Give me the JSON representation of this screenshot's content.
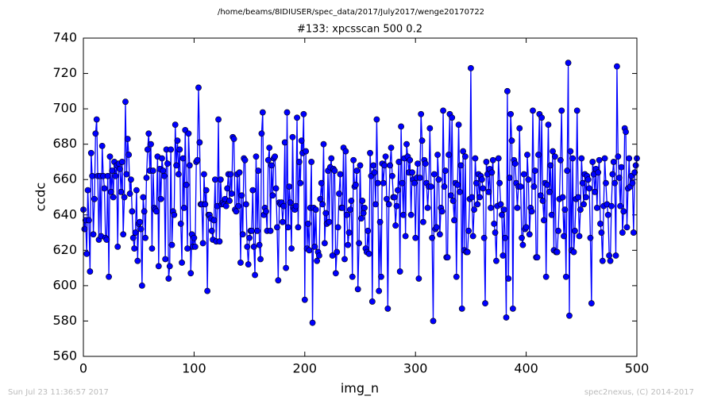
{
  "chart_data": {
    "type": "line",
    "suptitle": "/home/beams/8IDIUSER/spec_data/2017/July2017/wenge20170722",
    "title": "#133: xpcsscan 500 0.2",
    "xlabel": "img_n",
    "ylabel": "ccdc",
    "footer_left": "Sun Jul 23 11:36:57 2017",
    "footer_right": "spec2nexus, (C) 2014-2017",
    "xlim": [
      0,
      500
    ],
    "xticks": [
      0,
      100,
      200,
      300,
      400,
      500
    ],
    "ylim": [
      560,
      740
    ],
    "yticks": [
      560,
      580,
      600,
      620,
      640,
      660,
      680,
      700,
      720,
      740
    ],
    "grid": false,
    "marker": "circle",
    "x": [
      0,
      1,
      2,
      3,
      4,
      5,
      6,
      7,
      8,
      9,
      10,
      11,
      12,
      13,
      14,
      15,
      16,
      17,
      18,
      19,
      20,
      21,
      22,
      23,
      24,
      25,
      26,
      27,
      28,
      29,
      30,
      31,
      32,
      33,
      34,
      35,
      36,
      37,
      38,
      39,
      40,
      41,
      42,
      43,
      44,
      45,
      46,
      47,
      48,
      49,
      50,
      51,
      52,
      53,
      54,
      55,
      56,
      57,
      58,
      59,
      60,
      61,
      62,
      63,
      64,
      65,
      66,
      67,
      68,
      69,
      70,
      71,
      72,
      73,
      74,
      75,
      76,
      77,
      78,
      79,
      80,
      81,
      82,
      83,
      84,
      85,
      86,
      87,
      88,
      89,
      90,
      91,
      92,
      93,
      94,
      95,
      96,
      97,
      98,
      99,
      100,
      101,
      102,
      103,
      104,
      105,
      106,
      107,
      108,
      109,
      110,
      111,
      112,
      113,
      114,
      115,
      116,
      117,
      118,
      119,
      120,
      121,
      122,
      123,
      124,
      125,
      126,
      127,
      128,
      129,
      130,
      131,
      132,
      133,
      134,
      135,
      136,
      137,
      138,
      139,
      140,
      141,
      142,
      143,
      144,
      145,
      146,
      147,
      148,
      149,
      150,
      151,
      152,
      153,
      154,
      155,
      156,
      157,
      158,
      159,
      160,
      161,
      162,
      163,
      164,
      165,
      166,
      167,
      168,
      169,
      170,
      171,
      172,
      173,
      174,
      175,
      176,
      177,
      178,
      179,
      180,
      181,
      182,
      183,
      184,
      185,
      186,
      187,
      188,
      189,
      190,
      191,
      192,
      193,
      194,
      195,
      196,
      197,
      198,
      199,
      200,
      201,
      202,
      203,
      204,
      205,
      206,
      207,
      208,
      209,
      210,
      211,
      212,
      213,
      214,
      215,
      216,
      217,
      218,
      219,
      220,
      221,
      222,
      223,
      224,
      225,
      226,
      227,
      228,
      229,
      230,
      231,
      232,
      233,
      234,
      235,
      236,
      237,
      238,
      239,
      240,
      241,
      242,
      243,
      244,
      245,
      246,
      247,
      248,
      249,
      250,
      251,
      252,
      253,
      254,
      255,
      256,
      257,
      258,
      259,
      260,
      261,
      262,
      263,
      264,
      265,
      266,
      267,
      268,
      269,
      270,
      271,
      272,
      273,
      274,
      275,
      276,
      277,
      278,
      279,
      280,
      281,
      282,
      283,
      284,
      285,
      286,
      287,
      288,
      289,
      290,
      291,
      292,
      293,
      294,
      295,
      296,
      297,
      298,
      299,
      300,
      301,
      302,
      303,
      304,
      305,
      306,
      307,
      308,
      309,
      310,
      311,
      312,
      313,
      314,
      315,
      316,
      317,
      318,
      319,
      320,
      321,
      322,
      323,
      324,
      325,
      326,
      327,
      328,
      329,
      330,
      331,
      332,
      333,
      334,
      335,
      336,
      337,
      338,
      339,
      340,
      341,
      342,
      343,
      344,
      345,
      346,
      347,
      348,
      349,
      350,
      351,
      352,
      353,
      354,
      355,
      356,
      357,
      358,
      359,
      360,
      361,
      362,
      363,
      364,
      365,
      366,
      367,
      368,
      369,
      370,
      371,
      372,
      373,
      374,
      375,
      376,
      377,
      378,
      379,
      380,
      381,
      382,
      383,
      384,
      385,
      386,
      387,
      388,
      389,
      390,
      391,
      392,
      393,
      394,
      395,
      396,
      397,
      398,
      399,
      400,
      401,
      402,
      403,
      404,
      405,
      406,
      407,
      408,
      409,
      410,
      411,
      412,
      413,
      414,
      415,
      416,
      417,
      418,
      419,
      420,
      421,
      422,
      423,
      424,
      425,
      426,
      427,
      428,
      429,
      430,
      431,
      432,
      433,
      434,
      435,
      436,
      437,
      438,
      439,
      440,
      441,
      442,
      443,
      444,
      445,
      446,
      447,
      448,
      449,
      450,
      451,
      452,
      453,
      454,
      455,
      456,
      457,
      458,
      459,
      460,
      461,
      462,
      463,
      464,
      465,
      466,
      467,
      468,
      469,
      470,
      471,
      472,
      473,
      474,
      475,
      476,
      477,
      478,
      479,
      480,
      481,
      482,
      483,
      484,
      485,
      486,
      487,
      488,
      489,
      490,
      491,
      492,
      493,
      494,
      495,
      496,
      497,
      498,
      499,
      500
    ],
    "series": [
      {
        "name": "ccdc",
        "color": "#0000ff",
        "marker_edge": "#000000",
        "values": [
          643,
          632,
          637,
          618,
          654,
          637,
          608,
          675,
          662,
          629,
          649,
          686,
          694,
          662,
          626,
          662,
          628,
          679,
          662,
          655,
          627,
          626,
          662,
          605,
          673,
          653,
          665,
          650,
          670,
          662,
          668,
          622,
          669,
          666,
          653,
          670,
          629,
          650,
          704,
          663,
          683,
          674,
          652,
          660,
          642,
          627,
          621,
          630,
          654,
          614,
          635,
          636,
          632,
          600,
          650,
          642,
          627,
          661,
          677,
          686,
          665,
          680,
          621,
          665,
          644,
          643,
          642,
          673,
          611,
          666,
          649,
          672,
          665,
          662,
          615,
          677,
          669,
          604,
          611,
          677,
          623,
          642,
          640,
          691,
          668,
          682,
          663,
          677,
          635,
          613,
          672,
          644,
          688,
          657,
          621,
          686,
          668,
          607,
          629,
          622,
          627,
          622,
          670,
          671,
          712,
          681,
          646,
          646,
          624,
          663,
          646,
          654,
          597,
          640,
          640,
          638,
          631,
          626,
          637,
          660,
          625,
          645,
          694,
          625,
          660,
          646,
          647,
          646,
          649,
          645,
          655,
          663,
          648,
          663,
          652,
          684,
          683,
          643,
          642,
          663,
          645,
          664,
          613,
          651,
          629,
          672,
          671,
          646,
          622,
          612,
          627,
          631,
          631,
          654,
          622,
          606,
          673,
          631,
          665,
          623,
          615,
          686,
          698,
          640,
          644,
          642,
          631,
          671,
          678,
          631,
          668,
          651,
          672,
          673,
          655,
          633,
          603,
          647,
          646,
          647,
          636,
          645,
          681,
          610,
          698,
          633,
          656,
          647,
          621,
          684,
          644,
          643,
          645,
          695,
          633,
          670,
          658,
          682,
          675,
          697,
          592,
          676,
          621,
          635,
          620,
          644,
          670,
          579,
          644,
          622,
          643,
          614,
          619,
          617,
          649,
          658,
          646,
          680,
          624,
          641,
          635,
          665,
          636,
          667,
          672,
          617,
          666,
          665,
          607,
          619,
          633,
          652,
          663,
          644,
          644,
          678,
          615,
          676,
          640,
          623,
          630,
          643,
          648,
          605,
          671,
          656,
          657,
          665,
          598,
          624,
          668,
          638,
          648,
          641,
          644,
          621,
          619,
          631,
          618,
          675,
          662,
          591,
          668,
          664,
          646,
          694,
          658,
          597,
          636,
          605,
          669,
          658,
          668,
          673,
          649,
          587,
          646,
          668,
          678,
          662,
          650,
          650,
          634,
          645,
          654,
          670,
          608,
          690,
          658,
          640,
          672,
          628,
          680,
          673,
          664,
          671,
          640,
          664,
          660,
          658,
          627,
          661,
          669,
          604,
          661,
          697,
          682,
          636,
          671,
          669,
          658,
          644,
          656,
          689,
          656,
          627,
          580,
          663,
          632,
          633,
          674,
          660,
          629,
          644,
          642,
          699,
          656,
          665,
          616,
          616,
          674,
          697,
          651,
          695,
          648,
          637,
          658,
          605,
          657,
          691,
          653,
          668,
          587,
          676,
          620,
          673,
          619,
          619,
          631,
          649,
          723,
          650,
          628,
          643,
          672,
          658,
          646,
          663,
          650,
          662,
          660,
          655,
          627,
          590,
          670,
          663,
          653,
          666,
          644,
          664,
          671,
          635,
          630,
          614,
          645,
          672,
          658,
          646,
          640,
          617,
          643,
          627,
          582,
          710,
          604,
          661,
          697,
          682,
          587,
          671,
          669,
          658,
          644,
          656,
          689,
          656,
          627,
          623,
          663,
          632,
          633,
          674,
          660,
          629,
          644,
          642,
          699,
          656,
          665,
          616,
          616,
          674,
          697,
          651,
          695,
          648,
          637,
          658,
          605,
          657,
          691,
          653,
          668,
          640,
          676,
          620,
          673,
          619,
          619,
          631,
          649,
          671,
          699,
          650,
          628,
          643,
          605,
          665,
          726,
          583,
          676,
          620,
          672,
          619,
          631,
          649,
          699,
          650,
          628,
          643,
          672,
          658,
          646,
          663,
          650,
          662,
          660,
          655,
          627,
          590,
          670,
          663,
          653,
          666,
          644,
          664,
          671,
          635,
          630,
          614,
          645,
          672,
          658,
          646,
          640,
          617,
          614,
          645,
          663,
          670,
          658,
          617,
          724,
          673,
          661,
          645,
          667,
          630,
          642,
          689,
          687,
          633,
          655,
          672,
          656,
          662,
          658,
          630,
          664,
          668,
          672
        ]
      }
    ]
  }
}
